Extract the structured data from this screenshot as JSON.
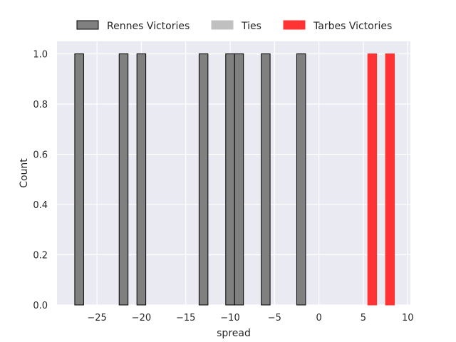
{
  "chart_data": {
    "type": "bar",
    "xlabel": "spread",
    "ylabel": "Count",
    "xlim": [
      -29.5,
      10.3
    ],
    "ylim": [
      0,
      1.05
    ],
    "x_ticks": [
      -25,
      -20,
      -15,
      -10,
      -5,
      0,
      5,
      10
    ],
    "y_ticks": [
      0.0,
      0.2,
      0.4,
      0.6,
      0.8,
      1.0
    ],
    "x_tick_labels": [
      "−25",
      "−20",
      "−15",
      "−10",
      "−5",
      "0",
      "5",
      "10"
    ],
    "y_tick_labels": [
      "0.0",
      "0.2",
      "0.4",
      "0.6",
      "0.8",
      "1.0"
    ],
    "bin_width": 1.0,
    "grid": true,
    "legend_position": "top-center",
    "series": [
      {
        "name": "Rennes Victories",
        "color": "#808080",
        "edge": "#000000",
        "bins": [
          {
            "x": -27,
            "count": 1
          },
          {
            "x": -22,
            "count": 1
          },
          {
            "x": -20,
            "count": 1
          },
          {
            "x": -13,
            "count": 1
          },
          {
            "x": -10,
            "count": 1
          },
          {
            "x": -9,
            "count": 1
          },
          {
            "x": -6,
            "count": 1
          },
          {
            "x": -2,
            "count": 1
          }
        ]
      },
      {
        "name": "Ties",
        "color": "#c0c0c0",
        "edge": "#c0c0c0",
        "bins": []
      },
      {
        "name": "Tarbes Victories",
        "color": "#ff3333",
        "edge": "#ff3333",
        "bins": [
          {
            "x": 6,
            "count": 1
          },
          {
            "x": 8,
            "count": 1
          }
        ]
      }
    ]
  }
}
